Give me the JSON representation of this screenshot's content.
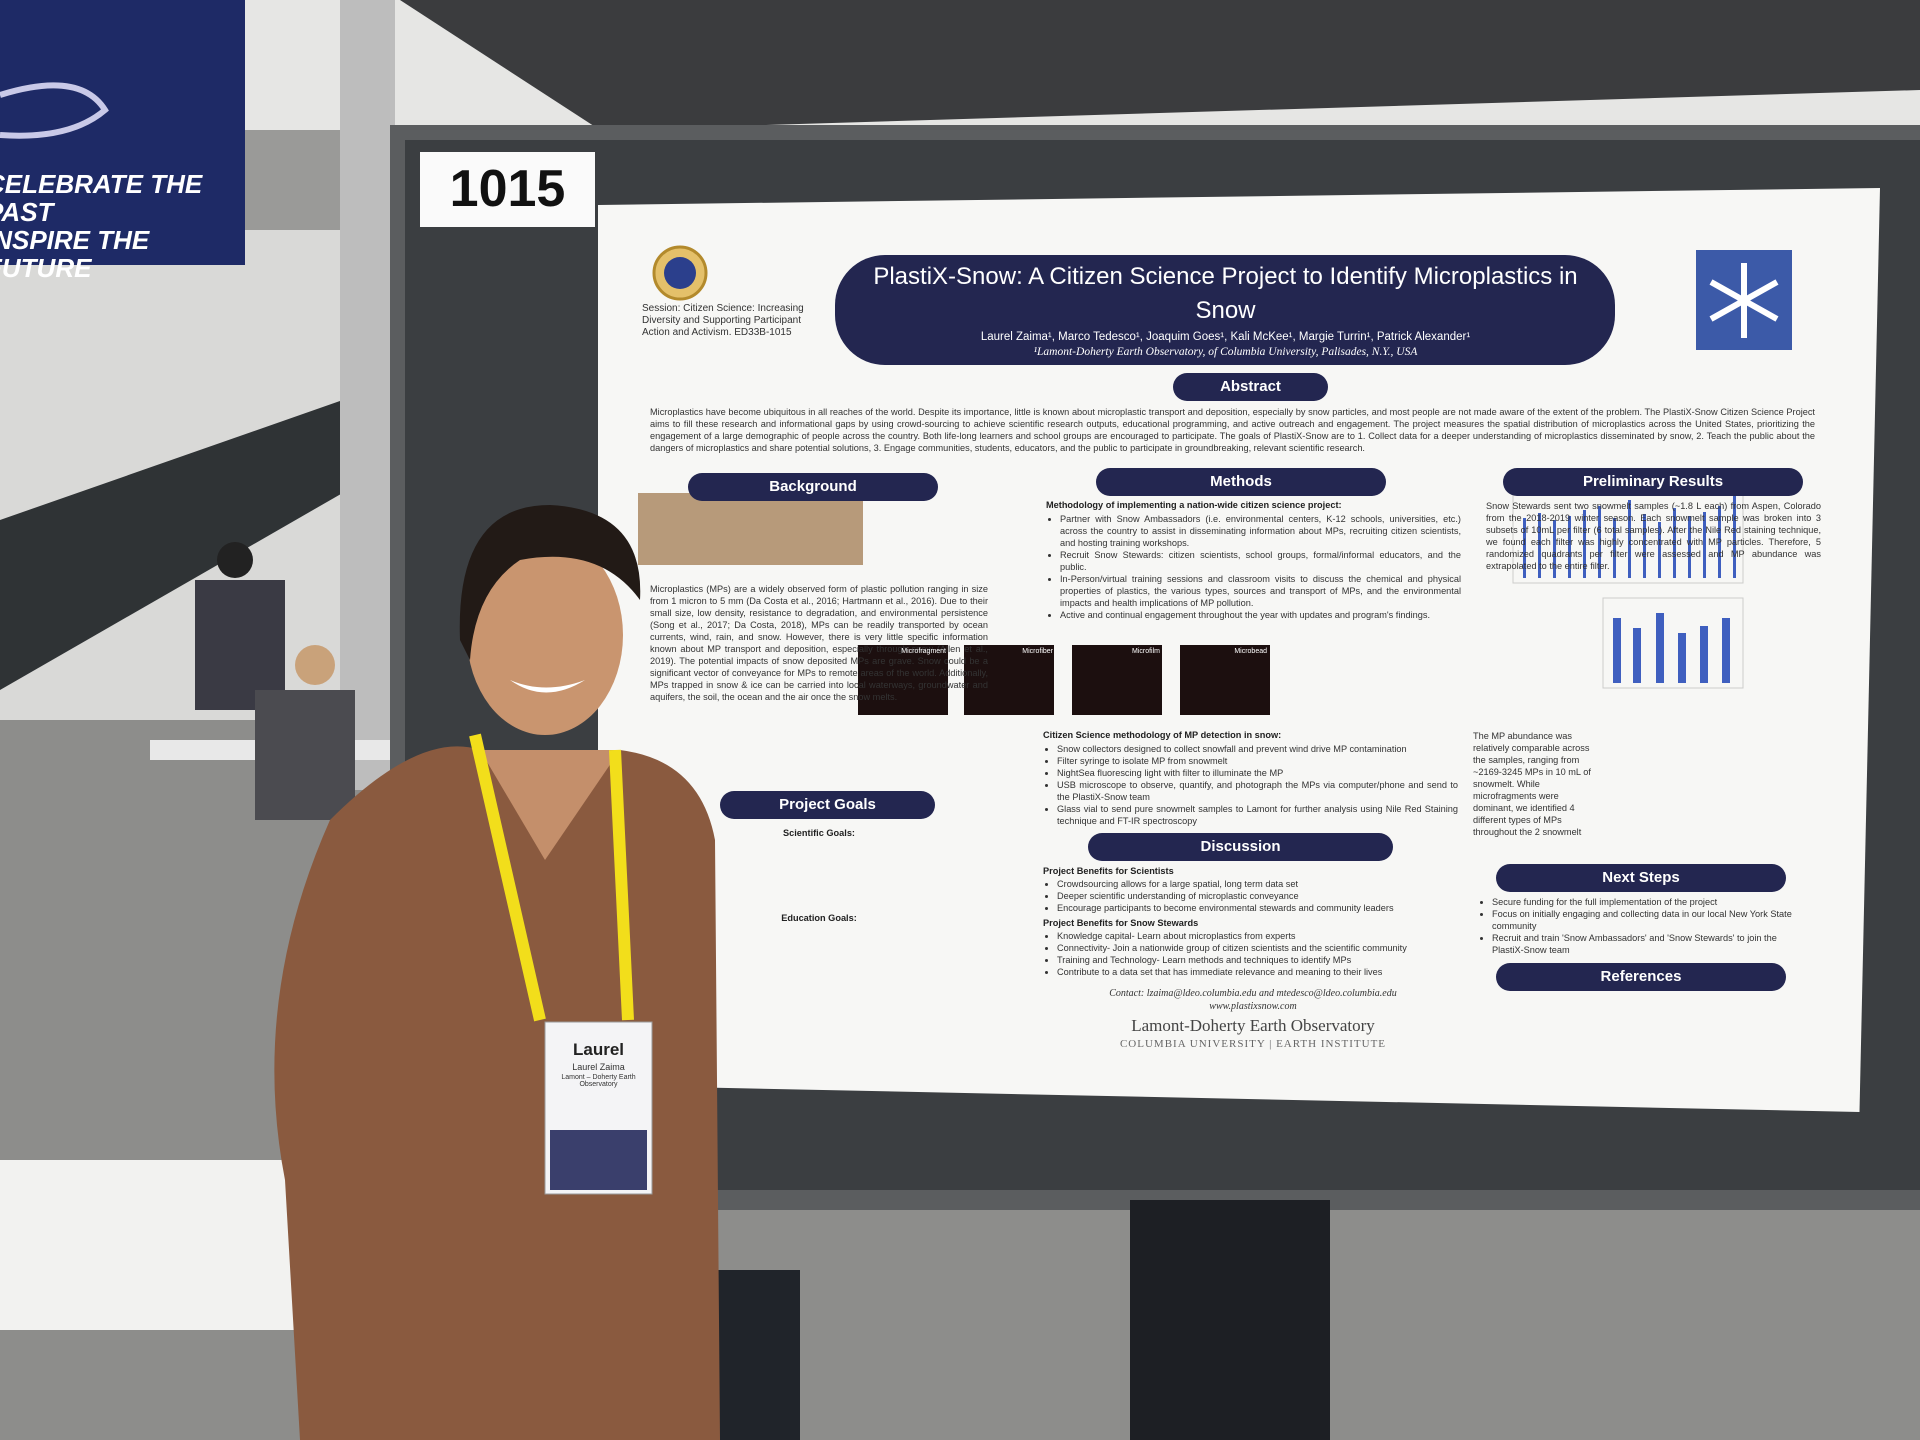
{
  "banner": {
    "lines": [
      "CELEBRATE THE PAST",
      "INSPIRE THE FUTURE"
    ]
  },
  "booth_number": "1015",
  "poster": {
    "session": "Session: Citizen Science: Increasing Diversity and Supporting Participant Action and Activism. ED33B-1015",
    "title": "PlastiX-Snow: A Citizen Science Project to Identify Microplastics in Snow",
    "authors": "Laurel Zaima¹, Marco Tedesco¹, Joaquim Goes¹, Kali McKee¹, Margie Turrin¹, Patrick Alexander¹",
    "affiliation": "¹Lamont-Doherty Earth Observatory, of Columbia University, Palisades, N.Y., USA",
    "abstract": {
      "heading": "Abstract",
      "text": "Microplastics have become ubiquitous in all reaches of the world. Despite its importance, little is known about microplastic transport and deposition, especially by snow particles, and most people are not made aware of the extent of the problem. The PlastiX-Snow Citizen Science Project aims to fill these research and informational gaps by using crowd-sourcing to achieve scientific research outputs, educational programming, and active outreach and engagement. The project measures the spatial distribution of microplastics across the United States, prioritizing the engagement of a large demographic of people across the country. Both life-long learners and school groups are encouraged to participate. The goals of PlastiX-Snow are to 1. Collect data for a deeper understanding of microplastics disseminated by snow, 2. Teach the public about the dangers of microplastics and share potential solutions, 3. Engage communities, students, educators, and the public to participate in groundbreaking, relevant scientific research."
    },
    "background": {
      "heading": "Background",
      "text": "Microplastics (MPs) are a widely observed form of plastic pollution ranging in size from 1 micron to 5 mm (Da Costa et al., 2016; Hartmann et al., 2016). Due to their small size, low density, resistance to degradation, and environmental persistence (Song et al., 2017; Da Costa, 2018), MPs can be readily transported by ocean currents, wind, rain, and snow. However, there is very little specific information known about MP transport and deposition, especially through snow (Allen et al., 2019). The potential impacts of snow deposited MPs are grave. Snow could be a significant vector of conveyance for MPs to remote areas of the world. Additionally, MPs trapped in snow & ice can be carried into local waterways, groundwater and aquifers, the soil, the ocean and the air once the snow melts."
    },
    "project_goals": {
      "heading": "Project Goals",
      "subheads": [
        "Scientific Goals:",
        "Education Goals:"
      ]
    },
    "methods": {
      "heading": "Methods",
      "intro": "Methodology of implementing a nation-wide citizen science project:",
      "bullets": [
        "Partner with Snow Ambassadors (i.e. environmental centers, K-12 schools, universities, etc.) across the country to assist in disseminating information about MPs, recruiting citizen scientists, and hosting training workshops.",
        "Recruit Snow Stewards: citizen scientists, school groups, formal/informal educators, and the public.",
        "In-Person/virtual training sessions and classroom visits to discuss the chemical and physical properties of plastics, the various types, sources and transport of MPs, and the environmental impacts and health implications of MP pollution.",
        "Active and continual engagement throughout the year with updates and program's findings."
      ],
      "image_labels": [
        "Microfragment",
        "Microfiber",
        "Microfilm",
        "Microbead"
      ],
      "detection_intro": "Citizen Science methodology of MP detection in snow:",
      "detection": [
        "Snow collectors designed to collect snowfall and prevent wind drive MP contamination",
        "Filter syringe to isolate MP from snowmelt",
        "NightSea fluorescing light with filter to illuminate the MP",
        "USB microscope to observe, quantify, and photograph the MPs via computer/phone and send to the PlastiX-Snow team",
        "Glass vial to send pure snowmelt samples to Lamont for further analysis using Nile Red Staining technique and FT-IR spectroscopy"
      ]
    },
    "discussion": {
      "heading": "Discussion",
      "sub1": "Project Benefits for Scientists",
      "list1": [
        "Crowdsourcing allows for a large spatial, long term data set",
        "Deeper scientific understanding of microplastic conveyance",
        "Encourage participants to become environmental stewards and community leaders"
      ],
      "sub2": "Project Benefits for Snow Stewards",
      "list2": [
        "Knowledge capital- Learn about microplastics from experts",
        "Connectivity- Join a nationwide group of citizen scientists and the scientific community",
        "Training and Technology- Learn methods and techniques to identify MPs",
        "Contribute to a data set that has immediate relevance and meaning to their lives"
      ],
      "contact": "Contact: lzaima@ldeo.columbia.edu and mtedesco@ldeo.columbia.edu",
      "website": "www.plastixsnow.com",
      "logo_line1": "Lamont-Doherty Earth Observatory",
      "logo_line2": "COLUMBIA UNIVERSITY | EARTH INSTITUTE"
    },
    "results": {
      "heading": "Preliminary Results",
      "text": "Snow Stewards sent two snowmelt samples (~1.8 L each) from Aspen, Colorado from the 2018-2019 winter season. Each snowmelt sample was broken into 3 subsets of 10mL per filter (6 total samples). After the Nile Red staining technique, we found each filter was highly concentrated with MP particles. Therefore, 5 randomized quadrants per filter were assessed and MP abundance was extrapolated to the entire filter.",
      "text2": "The MP abundance was relatively comparable across the samples, ranging from ~2169-3245 MPs in 10 mL of snowmelt. While microfragments were dominant, we identified 4 different types of MPs throughout the 2 snowmelt samples (fig. 2)."
    },
    "next_steps": {
      "heading": "Next Steps",
      "bullets": [
        "Secure funding for the full implementation of the project",
        "Focus on initially engaging and collecting data in our local New York State community",
        "Recruit and train 'Snow Ambassadors' and 'Snow Stewards' to join the PlastiX-Snow team"
      ]
    },
    "references": {
      "heading": "References"
    }
  },
  "badge": {
    "first_name": "Laurel",
    "full_name": "Laurel Zaima",
    "org": "Lamont – Doherty Earth Observatory"
  }
}
